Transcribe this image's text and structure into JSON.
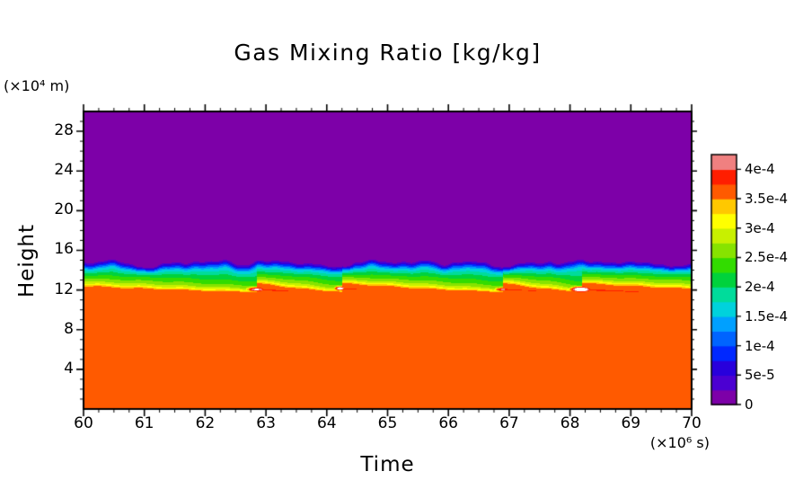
{
  "chart_data": {
    "type": "heatmap",
    "title": "Gas Mixing Ratio [kg/kg]",
    "xlabel": "Time",
    "ylabel": "Height",
    "x_unit": "(×10⁶ s)",
    "y_unit": "(×10⁴ m)",
    "xlim": [
      60,
      70
    ],
    "ylim": [
      0,
      30
    ],
    "axis_color": "#000000",
    "x_tick_values": [
      60,
      61,
      62,
      63,
      64,
      65,
      66,
      67,
      68,
      69,
      70
    ],
    "x_tick_labels": [
      "60",
      "61",
      "62",
      "63",
      "64",
      "65",
      "66",
      "67",
      "68",
      "69",
      "70"
    ],
    "y_tick_values": [
      4,
      8,
      12,
      16,
      20,
      24,
      28
    ],
    "y_tick_labels": [
      "4",
      "8",
      "12",
      "16",
      "20",
      "24",
      "28"
    ],
    "colorbar": {
      "levels": [
        0,
        2.5e-05,
        5e-05,
        7.5e-05,
        0.0001,
        0.000125,
        0.00015,
        0.000175,
        0.0002,
        0.000225,
        0.00025,
        0.000275,
        0.0003,
        0.000325,
        0.00035,
        0.000375,
        0.0004,
        0.000425
      ],
      "colors": [
        "#7D00A8",
        "#4B00D2",
        "#2800DC",
        "#0028FF",
        "#0064FF",
        "#00A0FF",
        "#00D2DC",
        "#00DC9B",
        "#00D23C",
        "#32DC00",
        "#87E300",
        "#C8F000",
        "#FFFF00",
        "#FFC800",
        "#FF5A00",
        "#FF1E00",
        "#F08080"
      ],
      "over_color": "#FFFFFF",
      "label_values": [
        0,
        5e-05,
        0.0001,
        0.00015,
        0.0002,
        0.00025,
        0.0003,
        0.00035,
        0.0004
      ],
      "labels": [
        "0",
        "5e-5",
        "1e-4",
        "1.5e-4",
        "2e-4",
        "2.5e-4",
        "3e-4",
        "3.5e-4",
        "4e-4"
      ]
    },
    "field": {
      "description": "Well-mixed gas layer (~3.6e-4 kg/kg) below ~12, thin yellow transition ~12.3-12.8, green gradient up to ~14.2, narrow blue band to ~14.9 jagged interface, zero (purple) above. Convective plume hot spots near height 12 with rightward-descending streaks.",
      "profile": [
        [
          0,
          0.000365
        ],
        [
          12.2,
          0.000355
        ],
        [
          12.45,
          0.000305
        ],
        [
          12.75,
          0.00027
        ],
        [
          13.6,
          0.00021
        ],
        [
          14.15,
          0.000155
        ],
        [
          14.5,
          9e-05
        ],
        [
          14.8,
          3e-05
        ],
        [
          15.05,
          0
        ],
        [
          30,
          0
        ]
      ],
      "interface_height": 14.9,
      "noise": {
        "top_amp": 0.25,
        "dip_amp": 0.45
      },
      "streak_segments": [
        59.0,
        62.85,
        64.25,
        66.9,
        68.2,
        71.5
      ],
      "plumes": [
        {
          "x": 62.85,
          "y": 12.05,
          "core_peak": 0.000435,
          "core_rx": 0.3,
          "core_ry": 0.45,
          "streak_peak": 0.000395,
          "streak_len": 1.3,
          "streak_drop": 0.3,
          "streak_ry": 0.32
        },
        {
          "x": 64.22,
          "y": 12.15,
          "core_peak": 0.00046,
          "core_rx": 0.16,
          "core_ry": 0.38,
          "streak_peak": 0.00039,
          "streak_len": 1.0,
          "streak_drop": 0.3,
          "streak_ry": 0.28
        },
        {
          "x": 66.9,
          "y": 12.05,
          "core_peak": 0.00041,
          "core_rx": 0.26,
          "core_ry": 0.4,
          "streak_peak": 0.000388,
          "streak_len": 1.6,
          "streak_drop": 0.25,
          "streak_ry": 0.3
        },
        {
          "x": 68.18,
          "y": 12.05,
          "core_peak": 0.000485,
          "core_rx": 0.3,
          "core_ry": 0.5,
          "streak_peak": 0.000395,
          "streak_len": 2.2,
          "streak_drop": 0.25,
          "streak_ry": 0.35
        }
      ]
    }
  }
}
